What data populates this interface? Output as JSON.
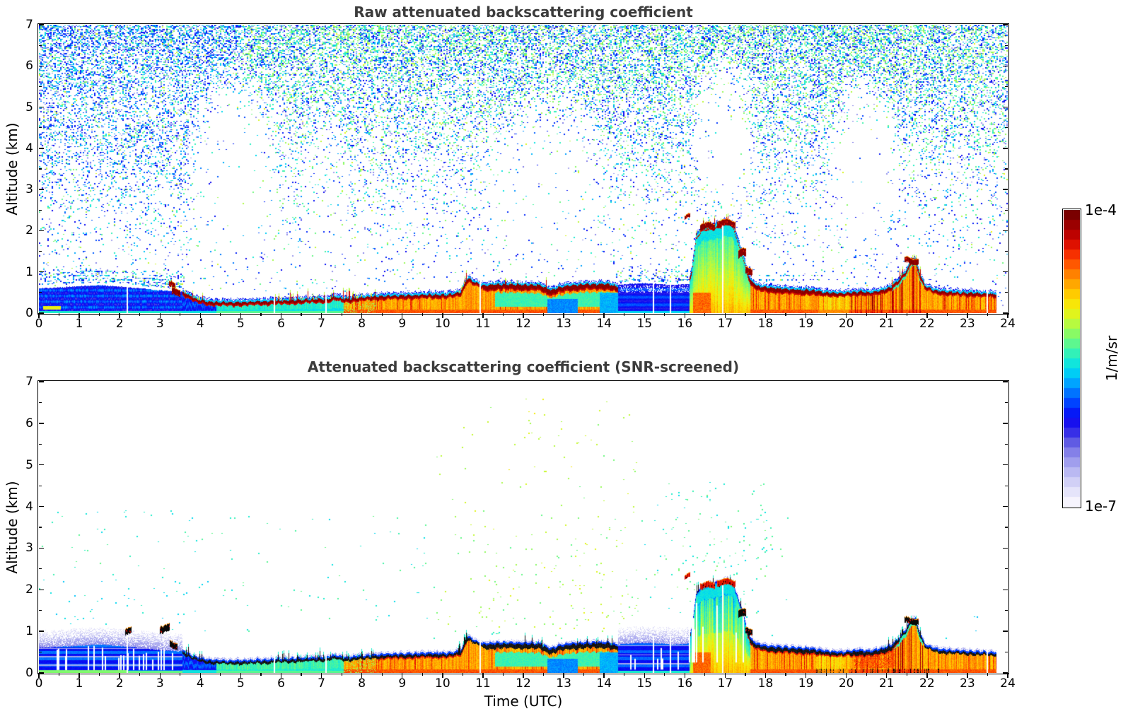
{
  "titles": {
    "panel1": "Raw attenuated backscattering coefficient",
    "panel2": "Attenuated backscattering coefficient (SNR-screened)"
  },
  "axis_labels": {
    "y": "Altitude (km)",
    "x": "Time (UTC)",
    "colorbar_unit": "1/m/sr"
  },
  "axes": {
    "x_range": [
      0,
      24
    ],
    "y_range": [
      0,
      7
    ],
    "x_ticks": [
      0,
      1,
      2,
      3,
      4,
      5,
      6,
      7,
      8,
      9,
      10,
      11,
      12,
      13,
      14,
      15,
      16,
      17,
      18,
      19,
      20,
      21,
      22,
      23,
      24
    ],
    "y_ticks": [
      0,
      1,
      2,
      3,
      4,
      5,
      6,
      7
    ]
  },
  "colorbar": {
    "tick_top": "1e-4",
    "tick_bottom": "1e-7",
    "n_steps": 30,
    "stops_low_to_high": [
      "#f6f4fd",
      "#e2e1fa",
      "#c9c8f5",
      "#aaa9ef",
      "#8a87e9",
      "#5f5ae3",
      "#2d24e9",
      "#0a04f2",
      "#0033ff",
      "#006eff",
      "#00a8ff",
      "#00d9f2",
      "#1eeecd",
      "#50f69c",
      "#86fb69",
      "#bdfa3c",
      "#eef312",
      "#ffdc00",
      "#ffb100",
      "#ff8300",
      "#ff5200",
      "#f32100",
      "#cc0400",
      "#a30000",
      "#7a0000"
    ]
  },
  "chart_data": {
    "type": "heatmap",
    "x_unit": "hours UTC",
    "y_unit": "km",
    "value_unit": "1/m/sr",
    "value_range": [
      1e-07,
      0.0001
    ],
    "scale": "log",
    "seed": 42,
    "data_end_hour": 23.72,
    "panels": [
      {
        "id": "raw",
        "title": "Raw attenuated backscattering coefficient",
        "screened": false
      },
      {
        "id": "screened",
        "title": "Attenuated backscattering coefficient (SNR-screened)",
        "screened": true
      }
    ],
    "morning_top_km": [
      [
        0,
        0.6
      ],
      [
        0.8,
        0.64
      ],
      [
        1.5,
        0.68
      ],
      [
        2.2,
        0.63
      ],
      [
        2.9,
        0.56
      ],
      [
        3.3,
        0.53
      ],
      [
        3.55,
        0.52
      ]
    ],
    "layer_top_km": [
      [
        3.55,
        0.52
      ],
      [
        3.7,
        0.44
      ],
      [
        3.9,
        0.34
      ],
      [
        4.2,
        0.28
      ],
      [
        4.6,
        0.26
      ],
      [
        5.2,
        0.27
      ],
      [
        5.7,
        0.29
      ],
      [
        6.2,
        0.31
      ],
      [
        6.7,
        0.33
      ],
      [
        7.1,
        0.34
      ],
      [
        7.35,
        0.39
      ],
      [
        7.6,
        0.34
      ],
      [
        8.0,
        0.38
      ],
      [
        8.6,
        0.42
      ],
      [
        9.2,
        0.43
      ],
      [
        9.7,
        0.45
      ],
      [
        10.1,
        0.44
      ],
      [
        10.45,
        0.5
      ],
      [
        10.62,
        0.85
      ],
      [
        10.8,
        0.75
      ],
      [
        11.0,
        0.67
      ],
      [
        11.4,
        0.7
      ],
      [
        12.0,
        0.69
      ],
      [
        12.4,
        0.68
      ],
      [
        12.7,
        0.56
      ],
      [
        12.85,
        0.62
      ],
      [
        13.1,
        0.67
      ],
      [
        13.6,
        0.7
      ],
      [
        14.1,
        0.71
      ],
      [
        14.35,
        0.64
      ],
      [
        15.95,
        0.7
      ],
      [
        16.1,
        0.72
      ],
      [
        16.18,
        1.1
      ],
      [
        16.28,
        1.85
      ],
      [
        16.4,
        2.05
      ],
      [
        16.6,
        2.1
      ],
      [
        16.85,
        2.16
      ],
      [
        17.05,
        2.24
      ],
      [
        17.2,
        2.15
      ],
      [
        17.3,
        1.8
      ],
      [
        17.42,
        1.5
      ],
      [
        17.52,
        1.1
      ],
      [
        17.62,
        0.8
      ],
      [
        17.8,
        0.66
      ],
      [
        18.1,
        0.62
      ],
      [
        18.6,
        0.58
      ],
      [
        19.1,
        0.56
      ],
      [
        19.5,
        0.5
      ],
      [
        19.9,
        0.47
      ],
      [
        20.3,
        0.52
      ],
      [
        20.6,
        0.5
      ],
      [
        20.9,
        0.56
      ],
      [
        21.1,
        0.63
      ],
      [
        21.3,
        0.8
      ],
      [
        21.5,
        1.05
      ],
      [
        21.62,
        1.3
      ],
      [
        21.72,
        1.28
      ],
      [
        21.82,
        0.95
      ],
      [
        21.95,
        0.66
      ],
      [
        22.2,
        0.55
      ],
      [
        22.6,
        0.51
      ],
      [
        23.1,
        0.49
      ],
      [
        23.72,
        0.46
      ]
    ],
    "fill_segments": [
      {
        "h0": 0.0,
        "h1": 3.55,
        "type": "morning-blue-boundary-layer"
      },
      {
        "h0": 3.55,
        "h1": 4.4,
        "type": "blue-transition"
      },
      {
        "h0": 4.4,
        "h1": 7.55,
        "type": "cyan-shallow-layer"
      },
      {
        "h0": 7.55,
        "h1": 14.35,
        "type": "orange-aerosol-layer"
      },
      {
        "h0": 14.35,
        "h1": 16.12,
        "type": "weak-blue-block"
      },
      {
        "h0": 16.12,
        "h1": 17.62,
        "type": "plume-deep-mixing"
      },
      {
        "h0": 17.62,
        "h1": 23.72,
        "type": "orange-aerosol-layer"
      }
    ],
    "spike_regions": [
      [
        3.6,
        4.1,
        0.25,
        0.3
      ],
      [
        5.85,
        7.6,
        0.22,
        0.28
      ],
      [
        7.62,
        7.82,
        0.55,
        0.45
      ],
      [
        7.82,
        8.35,
        0.3,
        0.22
      ],
      [
        10.35,
        10.62,
        0.5,
        0.3
      ],
      [
        11.5,
        12.6,
        0.14,
        0.28
      ],
      [
        13.3,
        14.3,
        0.1,
        0.22
      ],
      [
        16.12,
        17.45,
        0.18,
        0.3
      ],
      [
        20.9,
        21.85,
        0.22,
        0.28
      ]
    ],
    "gaps": [
      [
        2.17,
        0.95
      ],
      [
        5.82,
        1.2
      ],
      [
        7.1,
        1.25
      ],
      [
        10.92,
        1.05
      ],
      [
        15.2,
        0.9
      ],
      [
        15.62,
        0.9
      ],
      [
        16.93,
        2.4
      ],
      [
        23.47,
        0.75
      ]
    ],
    "noise_voids": [
      [
        4.9,
        3.5,
        1.25,
        2.6,
        0.04
      ],
      [
        12.5,
        3.3,
        1.8,
        2.3,
        0.15
      ],
      [
        16.95,
        4.35,
        0.9,
        2.1,
        0.04
      ],
      [
        20.45,
        3.6,
        1.0,
        2.4,
        0.04
      ],
      [
        7.1,
        3.0,
        0.6,
        2.0,
        0.35
      ]
    ],
    "screened_noise": [
      [
        0,
        18.6,
        0.78,
        3.9,
        0.005,
        0.46,
        0.56
      ],
      [
        11.2,
        14.9,
        0.9,
        2.6,
        0.01,
        0.48,
        0.58
      ],
      [
        15.2,
        18.2,
        1.9,
        4.6,
        0.018,
        0.46,
        0.58
      ],
      [
        9.8,
        14.9,
        1.0,
        6.6,
        0.004,
        0.55,
        0.66
      ],
      [
        11.5,
        13.2,
        4.6,
        6.6,
        0.004,
        0.6,
        0.7
      ],
      [
        0.2,
        4.2,
        0.9,
        2.3,
        0.006,
        0.44,
        0.52
      ],
      [
        20.8,
        23.3,
        0.7,
        1.4,
        0.004,
        0.42,
        0.5
      ]
    ],
    "screened_stripes": [
      [
        26,
        0.4,
        3.5,
        0.3,
        0.66,
        0.07
      ],
      [
        7,
        14.55,
        15.85,
        0.3,
        0.6,
        0.08
      ],
      [
        9,
        16.08,
        17.45,
        0.9,
        2.0,
        0.25
      ]
    ],
    "clouds_raw": [
      [
        3.22,
        3.38,
        0.62,
        0.12,
        "red"
      ],
      [
        3.3,
        3.5,
        0.45,
        0.15,
        "red"
      ],
      [
        16.0,
        16.14,
        2.28,
        0.08,
        "red"
      ],
      [
        16.38,
        16.75,
        2.02,
        0.14,
        "red"
      ],
      [
        16.8,
        17.25,
        2.1,
        0.14,
        "red"
      ],
      [
        17.32,
        17.52,
        1.35,
        0.18,
        "red"
      ],
      [
        17.5,
        17.68,
        0.95,
        0.15,
        "red"
      ],
      [
        21.45,
        21.8,
        1.2,
        0.13,
        "red"
      ]
    ],
    "clouds_screened": [
      [
        2.13,
        2.3,
        0.95,
        0.14,
        "black"
      ],
      [
        3.0,
        3.24,
        0.98,
        0.16,
        "black"
      ],
      [
        3.24,
        3.44,
        0.58,
        0.14,
        "black"
      ],
      [
        16.0,
        16.14,
        2.26,
        0.09,
        "orange"
      ],
      [
        16.38,
        16.75,
        2.02,
        0.13,
        "orange"
      ],
      [
        16.8,
        17.25,
        2.1,
        0.13,
        "orange"
      ],
      [
        17.32,
        17.52,
        1.33,
        0.17,
        "black"
      ],
      [
        17.5,
        17.68,
        0.93,
        0.14,
        "black"
      ],
      [
        21.45,
        21.8,
        1.18,
        0.13,
        "black"
      ]
    ]
  }
}
